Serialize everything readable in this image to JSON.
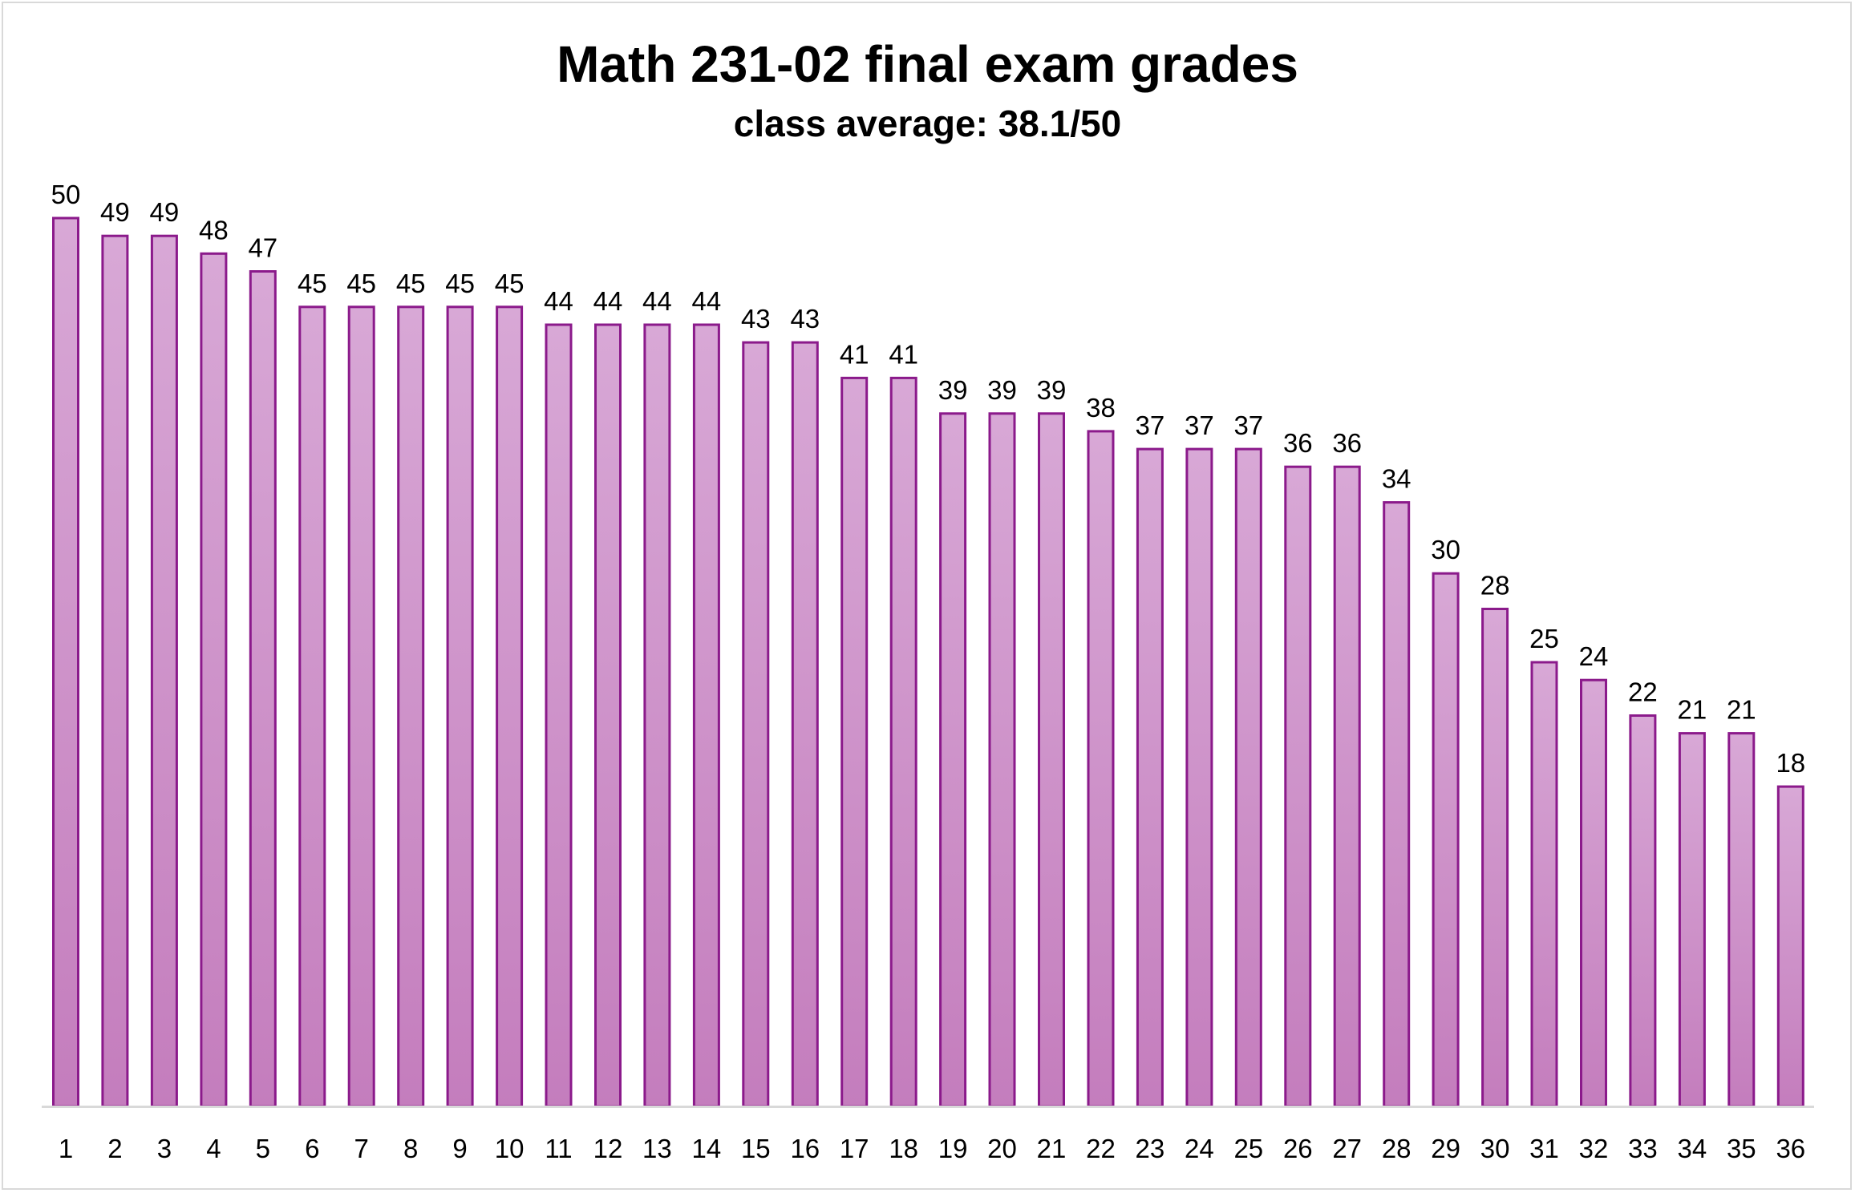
{
  "chart_data": {
    "type": "bar",
    "title": "Math 231-02 final exam grades",
    "subtitle": "class average: 38.1/50",
    "xlabel": "",
    "ylabel": "",
    "categories": [
      "1",
      "2",
      "3",
      "4",
      "5",
      "6",
      "7",
      "8",
      "9",
      "10",
      "11",
      "12",
      "13",
      "14",
      "15",
      "16",
      "17",
      "18",
      "19",
      "20",
      "21",
      "22",
      "23",
      "24",
      "25",
      "26",
      "27",
      "28",
      "29",
      "30",
      "31",
      "32",
      "33",
      "34",
      "35",
      "36"
    ],
    "values": [
      50,
      49,
      49,
      48,
      47,
      45,
      45,
      45,
      45,
      45,
      44,
      44,
      44,
      44,
      43,
      43,
      41,
      41,
      39,
      39,
      39,
      38,
      37,
      37,
      37,
      36,
      36,
      34,
      30,
      28,
      25,
      24,
      22,
      21,
      21,
      18
    ],
    "ylim": [
      0,
      50
    ],
    "grid": false,
    "legend": "none",
    "data_labels": true,
    "colors": {
      "bar_top": "#d8a8d6",
      "bar_bottom": "#c47dbd",
      "bar_outline": "#8b1a8b",
      "axis": "#d9d9d9"
    }
  }
}
